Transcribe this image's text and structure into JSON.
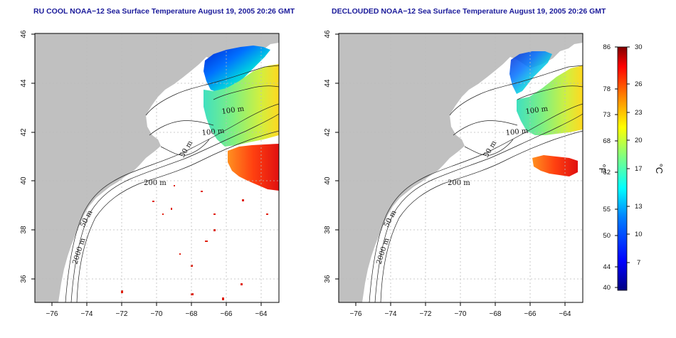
{
  "panels": [
    {
      "title": "RU COOL NOAA−12 Sea Surface Temperature August 19, 2005 20:26 GMT",
      "contour_labels": [
        "100 m",
        "100 m",
        "50 m",
        "200 m",
        "50 m",
        "2000 m"
      ]
    },
    {
      "title": "DECLOUDED NOAA−12 Sea Surface Temperature August 19, 2005 20:26 GMT",
      "contour_labels": [
        "100 m",
        "100 m",
        "50 m",
        "200 m",
        "50 m",
        "2000 m"
      ]
    }
  ],
  "axes": {
    "x_ticks": [
      "−76",
      "−74",
      "−72",
      "−70",
      "−68",
      "−66",
      "−64"
    ],
    "y_ticks": [
      "36",
      "38",
      "40",
      "42",
      "44",
      "46"
    ],
    "xlim": [
      -77,
      -63
    ],
    "ylim": [
      35,
      46
    ]
  },
  "colorbar": {
    "fahrenheit_label": "°F",
    "celsius_label": "°C",
    "fahrenheit_ticks": [
      "86",
      "78",
      "73",
      "68",
      "62",
      "55",
      "50",
      "44",
      "40"
    ],
    "celsius_ticks": [
      "30",
      "26",
      "23",
      "20",
      "17",
      "13",
      "10",
      "7"
    ],
    "range_celsius": [
      4,
      30
    ],
    "colors": [
      "#000080",
      "#0000ff",
      "#0080ff",
      "#00ffff",
      "#80ff80",
      "#ffff00",
      "#ff8000",
      "#ff0000",
      "#800000"
    ]
  },
  "colors": {
    "land": "#c0c0c0",
    "ocean": "#ffffff",
    "title": "#1a1a9a"
  }
}
